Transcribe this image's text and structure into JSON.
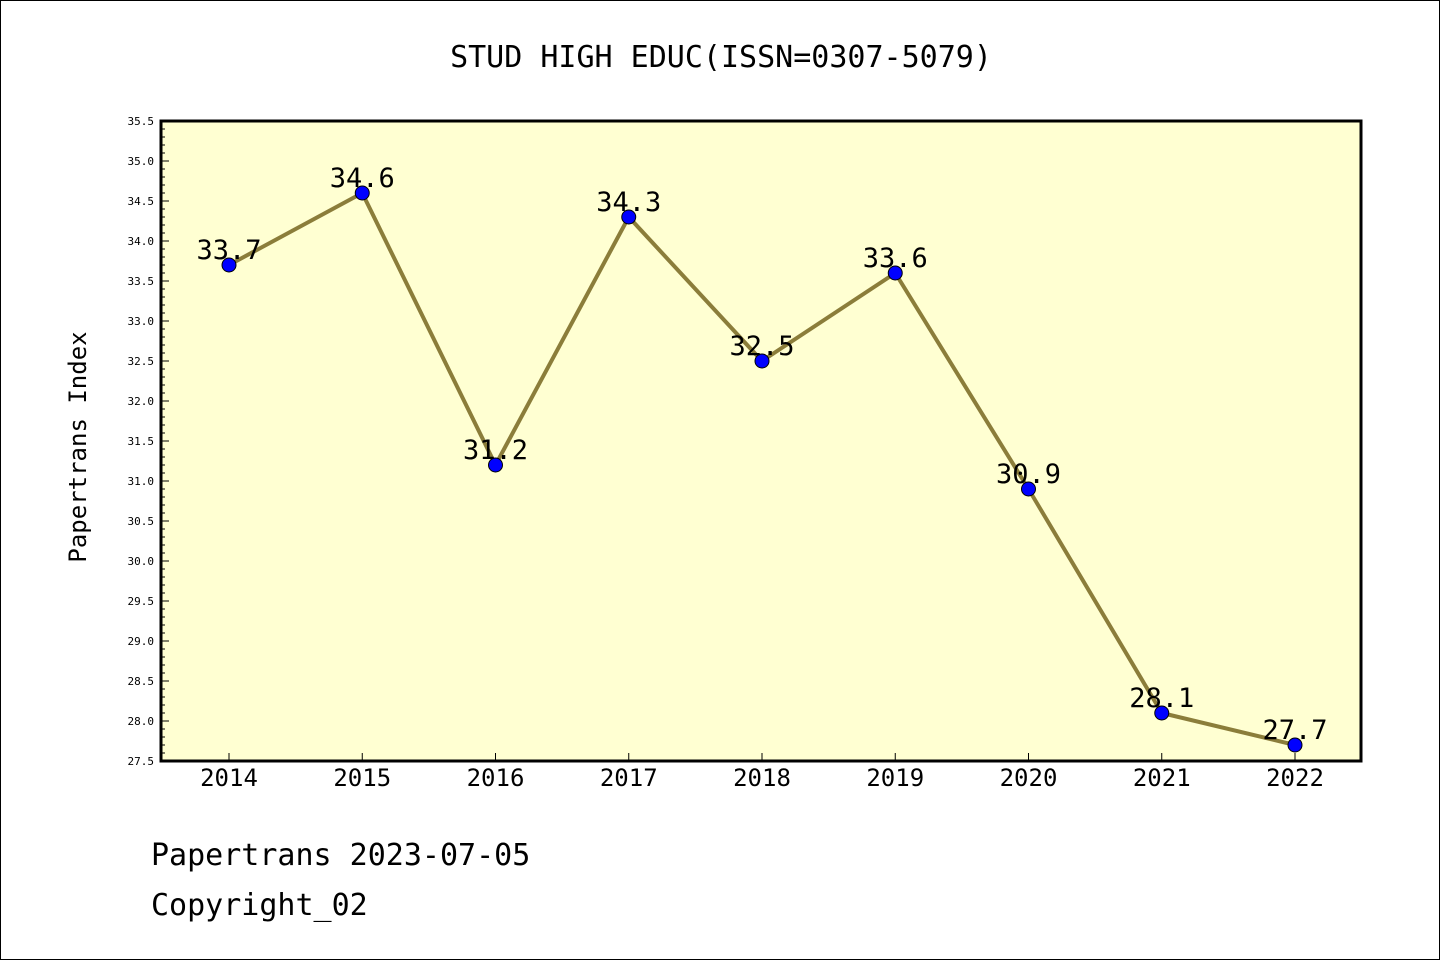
{
  "chart_data": {
    "type": "line",
    "title": "STUD HIGH EDUC(ISSN=0307-5079)",
    "xlabel": "",
    "ylabel": "Papertrans Index",
    "categories": [
      "2014",
      "2015",
      "2016",
      "2017",
      "2018",
      "2019",
      "2020",
      "2021",
      "2022"
    ],
    "values": [
      33.7,
      34.6,
      31.2,
      34.3,
      32.5,
      33.6,
      30.9,
      28.1,
      27.7
    ],
    "data_labels": [
      "33.7",
      "34.6",
      "31.2",
      "34.3",
      "32.5",
      "33.6",
      "30.9",
      "28.1",
      "27.7"
    ],
    "ylim": [
      27.5,
      35.5
    ],
    "yticks": [
      "27.5",
      "28.0",
      "28.5",
      "29.0",
      "29.5",
      "30.0",
      "30.5",
      "31.0",
      "31.5",
      "32.0",
      "32.5",
      "33.0",
      "33.5",
      "34.0",
      "34.5",
      "35.0",
      "35.5"
    ],
    "grid": false,
    "colors": {
      "plot_background": "#ffffd2",
      "line": "#8b7d3a",
      "marker": "#0000ff"
    }
  },
  "footer": {
    "line1": "Papertrans 2023-07-05",
    "line2": "Copyright_02"
  }
}
